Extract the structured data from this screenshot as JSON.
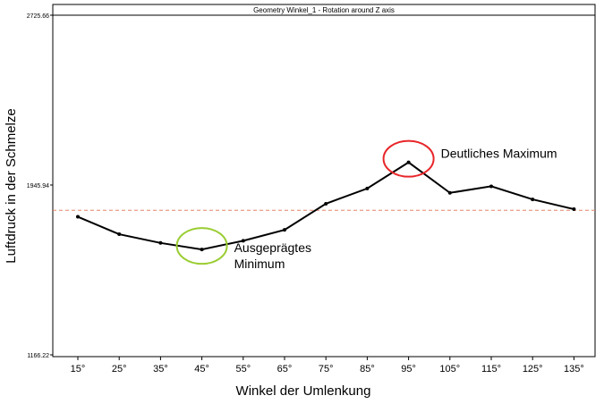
{
  "chart_data": {
    "type": "line",
    "title": "Geometry Winkel_1 - Rotation around Z axis",
    "xlabel": "Winkel der Umlenkung",
    "ylabel": "Luftdruck in der Schmelze",
    "categories": [
      "15°",
      "25°",
      "35°",
      "45°",
      "55°",
      "65°",
      "75°",
      "85°",
      "95°",
      "105°",
      "115°",
      "125°",
      "135°"
    ],
    "series": [
      {
        "values": [
          1800,
          1720,
          1680,
          1650,
          1690,
          1740,
          1860,
          1930,
          2050,
          1910,
          1940,
          1880,
          1835
        ]
      }
    ],
    "reference_line": {
      "value": 1830,
      "style": "dashed",
      "color": "#e6826a"
    },
    "y_ticks": [
      1166.22,
      1945.94,
      2725.66
    ],
    "y_tick_labels": [
      "1166.22",
      "1945.94",
      "2725.66"
    ],
    "ylim": [
      1166.22,
      2725.66
    ],
    "grid": false,
    "line_color": "#000000",
    "annotations": [
      {
        "text": "Deutliches Maximum",
        "category": "95°",
        "marker_color": "#e8262a"
      },
      {
        "text": "Ausgeprägtes Minimum",
        "lines": [
          "Ausgeprägtes",
          "Minimum"
        ],
        "category": "45°",
        "marker_color": "#9acd32"
      }
    ]
  }
}
